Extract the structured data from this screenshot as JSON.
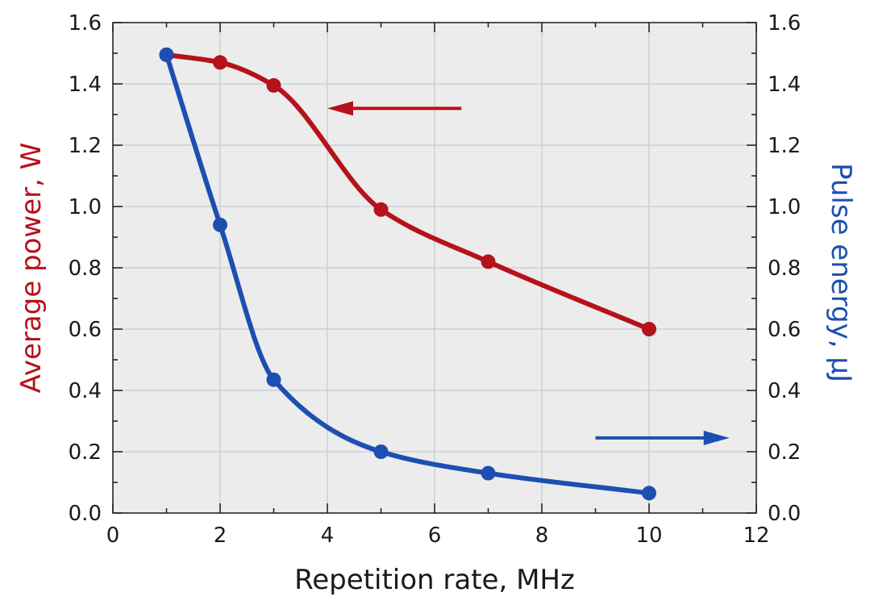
{
  "chart_data": {
    "type": "line",
    "xlabel": "Repetition rate, MHz",
    "ylabel": "Average power, W",
    "y2label": "Pulse energy, μJ",
    "xlim": [
      0,
      12
    ],
    "ylim": [
      0,
      1.6
    ],
    "y2lim": [
      0,
      1.6
    ],
    "grid": true,
    "x_ticks": [
      "0",
      "2",
      "4",
      "6",
      "8",
      "10",
      "12"
    ],
    "y_ticks": [
      "0.0",
      "0.2",
      "0.4",
      "0.6",
      "0.8",
      "1.0",
      "1.2",
      "1.4",
      "1.6"
    ],
    "y2_ticks": [
      "0.0",
      "0.2",
      "0.4",
      "0.6",
      "0.8",
      "1.0",
      "1.2",
      "1.4",
      "1.6"
    ],
    "series": [
      {
        "axis": "left",
        "color": "#b5121b",
        "x": [
          1,
          2,
          3,
          5,
          7,
          10
        ],
        "y": [
          1.495,
          1.47,
          1.395,
          0.99,
          0.82,
          0.6
        ]
      },
      {
        "axis": "right",
        "color": "#1c4fb0",
        "x": [
          1,
          2,
          3,
          5,
          7,
          10
        ],
        "y": [
          1.495,
          0.94,
          0.435,
          0.2,
          0.13,
          0.065
        ]
      }
    ],
    "annotations": [
      {
        "type": "arrow",
        "direction": "left",
        "series_axis": "left",
        "color": "#b5121b",
        "x_from": 6.5,
        "x_to": 4.0,
        "y": 1.32
      },
      {
        "type": "arrow",
        "direction": "right",
        "series_axis": "right",
        "color": "#1c4fb0",
        "x_from": 9.0,
        "x_to": 11.5,
        "y": 0.245
      }
    ],
    "colors": {
      "plot_background": "#ececec",
      "grid": "#c9d0d6",
      "axis": "#1a1a1a"
    }
  }
}
